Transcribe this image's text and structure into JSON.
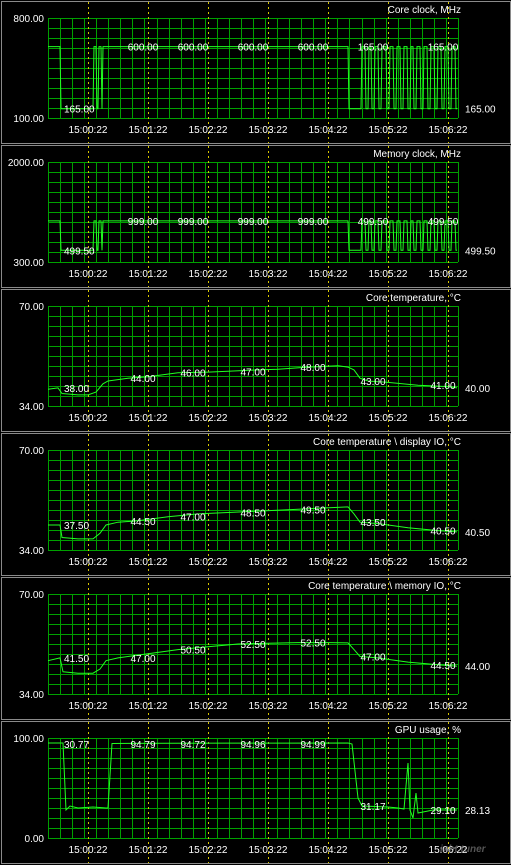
{
  "chart_data": [
    {
      "type": "line",
      "title": "Core clock, MHz",
      "ylim": [
        100,
        800
      ],
      "y_labels": [
        "800.00",
        "100.00"
      ],
      "x_ticks": [
        "15:00:22",
        "15:01:22",
        "15:02:22",
        "15:03:22",
        "15:04:22",
        "15:05:22",
        "15:06:22"
      ],
      "value_labels": [
        "165.00",
        "600.00",
        "600.00",
        "600.00",
        "600.00",
        "165.00",
        "165.00"
      ],
      "current_value": "165.00",
      "color": "#22ff22",
      "grid": true,
      "series": [
        {
          "segments": [
            [
              0,
              600
            ],
            [
              12,
              600
            ],
            [
              13,
              165
            ],
            [
              45,
              165
            ],
            [
              46,
              600
            ],
            [
              48,
              600
            ],
            [
              49,
              165
            ],
            [
              50,
              165
            ],
            [
              51,
              600
            ],
            [
              53,
              600
            ],
            [
              54,
              165
            ],
            [
              55,
              600
            ],
            [
              300,
              600
            ],
            [
              301,
              165
            ],
            [
              313,
              165
            ],
            [
              314,
              600
            ],
            [
              317,
              600
            ],
            [
              318,
              165
            ],
            [
              320,
              165
            ],
            [
              321,
              600
            ],
            [
              323,
              600
            ],
            [
              324,
              165
            ],
            [
              326,
              165
            ],
            [
              327,
              600
            ],
            [
              330,
              600
            ],
            [
              331,
              165
            ],
            [
              333,
              165
            ],
            [
              334,
              600
            ],
            [
              338,
              600
            ],
            [
              339,
              165
            ],
            [
              341,
              165
            ],
            [
              342,
              600
            ],
            [
              345,
              600
            ],
            [
              346,
              165
            ],
            [
              348,
              165
            ],
            [
              349,
              600
            ],
            [
              352,
              600
            ],
            [
              353,
              165
            ],
            [
              355,
              165
            ],
            [
              356,
              600
            ],
            [
              359,
              600
            ],
            [
              360,
              165
            ],
            [
              362,
              165
            ],
            [
              363,
              600
            ],
            [
              365,
              600
            ],
            [
              366,
              165
            ],
            [
              368,
              165
            ],
            [
              369,
              600
            ],
            [
              372,
              600
            ],
            [
              373,
              165
            ],
            [
              375,
              165
            ],
            [
              376,
              600
            ],
            [
              379,
              600
            ],
            [
              380,
              165
            ],
            [
              382,
              165
            ],
            [
              383,
              600
            ],
            [
              386,
              600
            ],
            [
              387,
              165
            ],
            [
              389,
              165
            ],
            [
              390,
              600
            ],
            [
              393,
              600
            ],
            [
              394,
              165
            ],
            [
              396,
              165
            ],
            [
              397,
              600
            ],
            [
              400,
              600
            ],
            [
              401,
              165
            ],
            [
              403,
              165
            ],
            [
              404,
              600
            ],
            [
              407,
              600
            ],
            [
              408,
              165
            ],
            [
              409,
              165
            ]
          ]
        }
      ]
    },
    {
      "type": "line",
      "title": "Memory clock, MHz",
      "ylim": [
        300,
        2000
      ],
      "y_labels": [
        "2000.00",
        "300.00"
      ],
      "x_ticks": [
        "15:00:22",
        "15:01:22",
        "15:02:22",
        "15:03:22",
        "15:04:22",
        "15:05:22",
        "15:06:22"
      ],
      "value_labels": [
        "499.50",
        "999.00",
        "999.00",
        "999.00",
        "999.00",
        "499.50",
        "499.50"
      ],
      "current_value": "499.50",
      "color": "#22ff22",
      "grid": true,
      "series": [
        {
          "segments": [
            [
              0,
              999
            ],
            [
              12,
              999
            ],
            [
              13,
              499.5
            ],
            [
              45,
              499.5
            ],
            [
              46,
              999
            ],
            [
              48,
              999
            ],
            [
              49,
              499.5
            ],
            [
              50,
              499.5
            ],
            [
              51,
              999
            ],
            [
              53,
              999
            ],
            [
              54,
              499.5
            ],
            [
              55,
              999
            ],
            [
              300,
              999
            ],
            [
              301,
              499.5
            ],
            [
              313,
              499.5
            ],
            [
              314,
              999
            ],
            [
              317,
              999
            ],
            [
              318,
              499.5
            ],
            [
              320,
              499.5
            ],
            [
              321,
              999
            ],
            [
              323,
              999
            ],
            [
              324,
              499.5
            ],
            [
              326,
              499.5
            ],
            [
              327,
              999
            ],
            [
              330,
              999
            ],
            [
              331,
              499.5
            ],
            [
              333,
              499.5
            ],
            [
              334,
              999
            ],
            [
              338,
              999
            ],
            [
              339,
              499.5
            ],
            [
              341,
              499.5
            ],
            [
              342,
              999
            ],
            [
              345,
              999
            ],
            [
              346,
              499.5
            ],
            [
              348,
              499.5
            ],
            [
              349,
              999
            ],
            [
              352,
              999
            ],
            [
              353,
              499.5
            ],
            [
              355,
              499.5
            ],
            [
              356,
              999
            ],
            [
              359,
              999
            ],
            [
              360,
              499.5
            ],
            [
              362,
              499.5
            ],
            [
              363,
              999
            ],
            [
              365,
              999
            ],
            [
              366,
              499.5
            ],
            [
              368,
              499.5
            ],
            [
              369,
              999
            ],
            [
              372,
              999
            ],
            [
              373,
              499.5
            ],
            [
              375,
              499.5
            ],
            [
              376,
              999
            ],
            [
              379,
              999
            ],
            [
              380,
              499.5
            ],
            [
              382,
              499.5
            ],
            [
              383,
              999
            ],
            [
              386,
              999
            ],
            [
              387,
              499.5
            ],
            [
              389,
              499.5
            ],
            [
              390,
              999
            ],
            [
              393,
              999
            ],
            [
              394,
              499.5
            ],
            [
              396,
              499.5
            ],
            [
              397,
              999
            ],
            [
              400,
              999
            ],
            [
              401,
              499.5
            ],
            [
              403,
              499.5
            ],
            [
              404,
              999
            ],
            [
              407,
              999
            ],
            [
              408,
              499.5
            ],
            [
              409,
              499.5
            ]
          ]
        }
      ]
    },
    {
      "type": "line",
      "title": "Core temperature, °C",
      "ylim": [
        34,
        70
      ],
      "y_labels": [
        "70.00",
        "34.00"
      ],
      "x_ticks": [
        "15:00:22",
        "15:01:22",
        "15:02:22",
        "15:03:22",
        "15:04:22",
        "15:05:22",
        "15:06:22"
      ],
      "value_labels": [
        "38.00",
        "44.00",
        "46.00",
        "47.00",
        "48.00",
        "43.00",
        "41.00"
      ],
      "current_value": "40.00",
      "color": "#22ff22",
      "grid": true,
      "series": [
        {
          "segments": [
            [
              0,
              40
            ],
            [
              10,
              40.5
            ],
            [
              14,
              38.5
            ],
            [
              30,
              38
            ],
            [
              40,
              38
            ],
            [
              48,
              39
            ],
            [
              55,
              42
            ],
            [
              60,
              43
            ],
            [
              80,
              44
            ],
            [
              100,
              44.5
            ],
            [
              130,
              46
            ],
            [
              160,
              46.2
            ],
            [
              180,
              46.5
            ],
            [
              210,
              47
            ],
            [
              230,
              47.2
            ],
            [
              260,
              48
            ],
            [
              290,
              48.5
            ],
            [
              300,
              48
            ],
            [
              306,
              47
            ],
            [
              312,
              44
            ],
            [
              320,
              43
            ],
            [
              340,
              42.5
            ],
            [
              370,
              41.5
            ],
            [
              400,
              41
            ],
            [
              409,
              40.5
            ]
          ]
        }
      ]
    },
    {
      "type": "line",
      "title": "Core temperature \\ display IO, °C",
      "ylim": [
        34,
        70
      ],
      "y_labels": [
        "70.00",
        "34.00"
      ],
      "x_ticks": [
        "15:00:22",
        "15:01:22",
        "15:02:22",
        "15:03:22",
        "15:04:22",
        "15:05:22",
        "15:06:22"
      ],
      "value_labels": [
        "37.50",
        "44.50",
        "47.00",
        "48.50",
        "49.50",
        "43.50",
        "40.50"
      ],
      "current_value": "40.50",
      "color": "#22ff22",
      "grid": true,
      "series": [
        {
          "segments": [
            [
              0,
              43
            ],
            [
              12,
              43
            ],
            [
              14,
              38.5
            ],
            [
              30,
              38
            ],
            [
              45,
              38
            ],
            [
              52,
              40
            ],
            [
              58,
              43
            ],
            [
              70,
              44
            ],
            [
              90,
              44.5
            ],
            [
              120,
              46
            ],
            [
              150,
              47
            ],
            [
              180,
              47.5
            ],
            [
              210,
              48
            ],
            [
              240,
              48.5
            ],
            [
              270,
              49
            ],
            [
              300,
              49.5
            ],
            [
              306,
              47
            ],
            [
              312,
              44
            ],
            [
              330,
              43.5
            ],
            [
              360,
              42
            ],
            [
              390,
              41
            ],
            [
              409,
              40.5
            ]
          ]
        }
      ]
    },
    {
      "type": "line",
      "title": "Core temperature \\ memory IO, °C",
      "ylim": [
        34,
        70
      ],
      "y_labels": [
        "70.00",
        "34.00"
      ],
      "x_ticks": [
        "15:00:22",
        "15:01:22",
        "15:02:22",
        "15:03:22",
        "15:04:22",
        "15:05:22",
        "15:06:22"
      ],
      "value_labels": [
        "41.50",
        "47.00",
        "50.50",
        "52.50",
        "52.50",
        "47.00",
        "44.50"
      ],
      "current_value": "44.00",
      "color": "#22ff22",
      "grid": true,
      "series": [
        {
          "segments": [
            [
              0,
              46
            ],
            [
              12,
              47
            ],
            [
              15,
              42
            ],
            [
              30,
              41.5
            ],
            [
              45,
              41.5
            ],
            [
              52,
              43
            ],
            [
              58,
              46
            ],
            [
              70,
              47
            ],
            [
              100,
              48.5
            ],
            [
              130,
              50
            ],
            [
              160,
              51
            ],
            [
              190,
              52
            ],
            [
              220,
              52.3
            ],
            [
              250,
              52.5
            ],
            [
              280,
              52.5
            ],
            [
              300,
              52.4
            ],
            [
              306,
              50
            ],
            [
              312,
              47.5
            ],
            [
              330,
              47
            ],
            [
              360,
              45.5
            ],
            [
              390,
              44.5
            ],
            [
              409,
              44
            ]
          ]
        }
      ]
    },
    {
      "type": "line",
      "title": "GPU usage, %",
      "ylim": [
        0,
        100
      ],
      "y_labels": [
        "100.00",
        "0.00"
      ],
      "x_ticks": [
        "15:00:22",
        "15:01:22",
        "15:02:22",
        "15:03:22",
        "15:04:22",
        "15:05:22",
        "15:06:22"
      ],
      "value_labels": [
        "30.77",
        "94.79",
        "94.72",
        "94.96",
        "94.99",
        "31.17",
        "29.10"
      ],
      "current_value": "28.13",
      "color": "#22ff22",
      "grid": true,
      "series": [
        {
          "segments": [
            [
              0,
              95
            ],
            [
              15,
              95
            ],
            [
              18,
              28
            ],
            [
              22,
              32
            ],
            [
              30,
              30
            ],
            [
              45,
              31
            ],
            [
              58,
              30
            ],
            [
              60,
              30
            ],
            [
              64,
              94.5
            ],
            [
              120,
              94.8
            ],
            [
              180,
              94.9
            ],
            [
              240,
              94.9
            ],
            [
              300,
              95
            ],
            [
              304,
              94
            ],
            [
              310,
              40
            ],
            [
              314,
              32
            ],
            [
              340,
              31
            ],
            [
              350,
              30
            ],
            [
              356,
              29
            ],
            [
              360,
              75
            ],
            [
              362,
              28
            ],
            [
              365,
              20
            ],
            [
              368,
              45
            ],
            [
              370,
              25
            ],
            [
              385,
              28
            ],
            [
              409,
              28
            ]
          ]
        }
      ]
    }
  ],
  "watermark": "ixbt tuner"
}
